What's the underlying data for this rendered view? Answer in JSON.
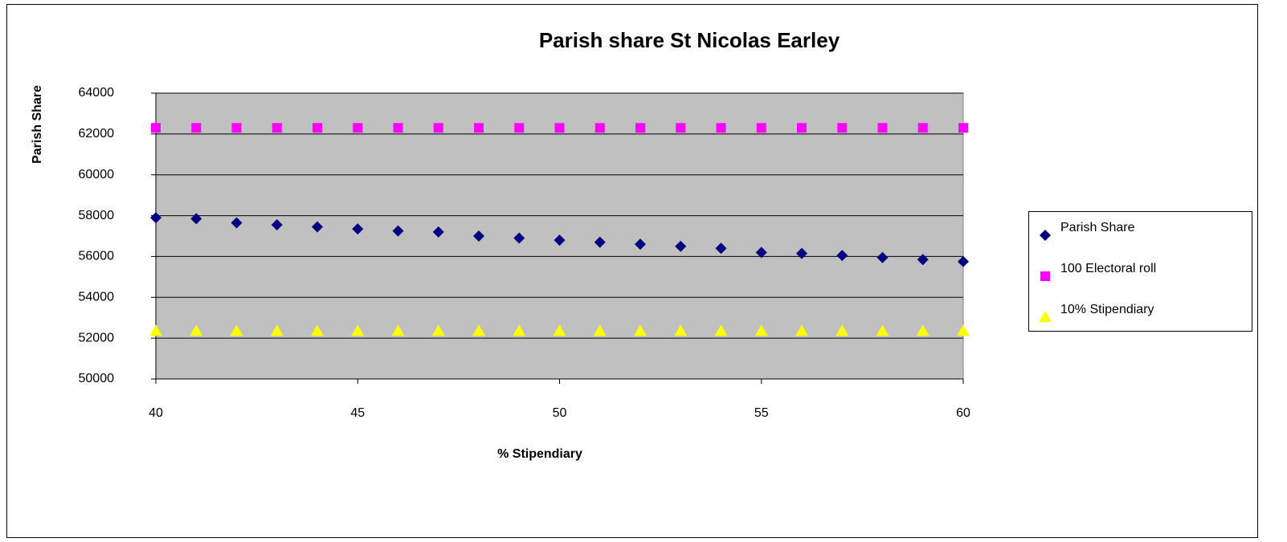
{
  "chart_data": {
    "type": "scatter",
    "title": "Parish share St Nicolas Earley",
    "x_label": "% Stipendiary",
    "y_label": "Parish Share",
    "x": [
      40,
      41,
      42,
      43,
      44,
      45,
      46,
      47,
      48,
      49,
      50,
      51,
      52,
      53,
      54,
      55,
      56,
      57,
      58,
      59,
      60
    ],
    "series": [
      {
        "name": "Parish Share",
        "color": "#000080",
        "marker": "diamond",
        "values": [
          57900,
          57850,
          57650,
          57550,
          57450,
          57350,
          57250,
          57200,
          57000,
          56900,
          56800,
          56700,
          56600,
          56500,
          56400,
          56200,
          56150,
          56050,
          55950,
          55850,
          55750
        ]
      },
      {
        "name": "100 Electoral roll",
        "color": "#ff00ff",
        "marker": "square",
        "values": [
          62300,
          62300,
          62300,
          62300,
          62300,
          62300,
          62300,
          62300,
          62300,
          62300,
          62300,
          62300,
          62300,
          62300,
          62300,
          62300,
          62300,
          62300,
          62300,
          62300,
          62300
        ]
      },
      {
        "name": "10% Stipendiary",
        "color": "#ffff00",
        "marker": "triangle",
        "values": [
          52350,
          52350,
          52350,
          52350,
          52350,
          52350,
          52350,
          52350,
          52350,
          52350,
          52350,
          52350,
          52350,
          52350,
          52350,
          52350,
          52350,
          52350,
          52350,
          52350,
          52350
        ]
      }
    ],
    "xlim": [
      40,
      60
    ],
    "xticks": [
      40,
      45,
      50,
      55,
      60
    ],
    "ylim": [
      50000,
      64000
    ],
    "yticks": [
      50000,
      52000,
      54000,
      56000,
      58000,
      60000,
      62000,
      64000
    ],
    "grid": true,
    "legend": "right",
    "plot_background": "#c0c0c0"
  }
}
